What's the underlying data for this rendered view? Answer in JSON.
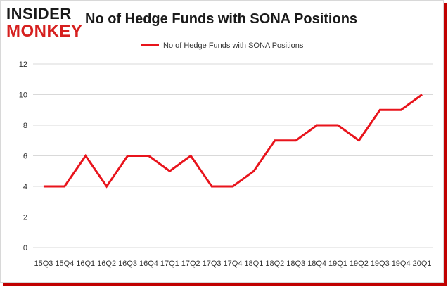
{
  "logo": {
    "line1": "INSIDER",
    "line2": "MONKEY"
  },
  "chart_data": {
    "type": "line",
    "title": "No of Hedge Funds with SONA Positions",
    "categories": [
      "Q3",
      "Q4",
      "Q1",
      "Q2",
      "Q3",
      "Q4",
      "Q1",
      "Q2",
      "Q3",
      "Q4",
      "Q1",
      "Q2",
      "Q3",
      "Q4",
      "Q1",
      "Q2",
      "Q3",
      "Q4",
      "Q1"
    ],
    "x_tick_labels": [
      "15Q3",
      "15Q4",
      "16Q1",
      "16Q2",
      "16Q3",
      "16Q4",
      "17Q1",
      "17Q2",
      "17Q3",
      "17Q4",
      "18Q1",
      "18Q2",
      "18Q3",
      "18Q4",
      "19Q1",
      "19Q2",
      "19Q3",
      "19Q4",
      "20Q1"
    ],
    "series": [
      {
        "name": "No of Hedge Funds with SONA Positions",
        "values": [
          4,
          4,
          6,
          4,
          6,
          6,
          5,
          6,
          4,
          4,
          5,
          7,
          7,
          8,
          8,
          7,
          9,
          9,
          10
        ]
      }
    ],
    "ylim": [
      0,
      12
    ],
    "yticks": [
      0,
      2,
      4,
      6,
      8,
      10,
      12
    ],
    "grid": true,
    "legend": "top-center",
    "line_color": "#e8141c"
  }
}
